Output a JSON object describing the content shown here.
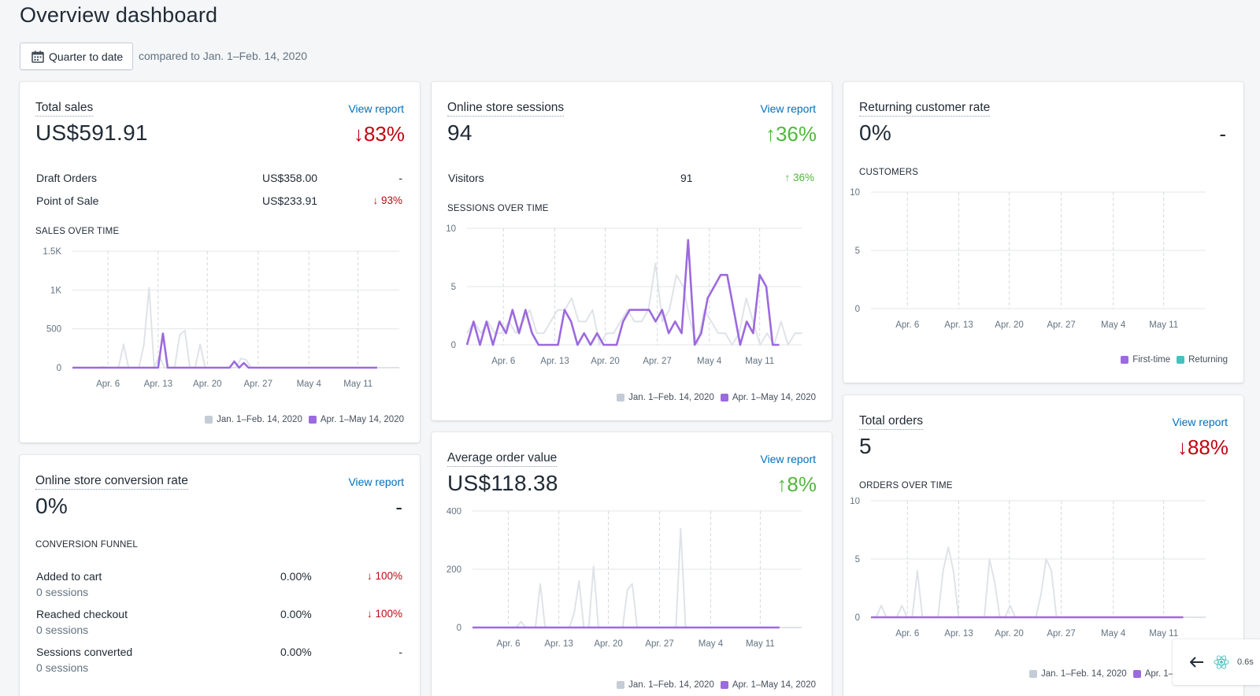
{
  "page": {
    "title": "Overview dashboard",
    "date_button": "Quarter to date",
    "compare_text": "compared to Jan. 1–Feb. 14, 2020"
  },
  "colors": {
    "current": "#9c6ade",
    "previous": "#dfe3e8",
    "returning": "#47c1bf",
    "grid": "#e6e8ea"
  },
  "x_ticks": [
    "Apr. 6",
    "Apr. 13",
    "Apr. 20",
    "Apr. 27",
    "May 4",
    "May 11"
  ],
  "legend": {
    "previous": "Jan. 1–Feb. 14, 2020",
    "current": "Apr. 1–May 14, 2020"
  },
  "total_sales": {
    "title": "Total sales",
    "view_report": "View report",
    "value": "US$591.91",
    "change": "↓83%",
    "rows": [
      {
        "label": "Draft Orders",
        "amount": "US$358.00",
        "change": "-"
      },
      {
        "label": "Point of Sale",
        "amount": "US$233.91",
        "change": "↓ 93%"
      }
    ],
    "chart_title": "SALES OVER TIME",
    "y_ticks": [
      "1.5K",
      "1K",
      "500",
      "0"
    ]
  },
  "sessions": {
    "title": "Online store sessions",
    "view_report": "View report",
    "value": "94",
    "change": "↑36%",
    "rows": [
      {
        "label": "Visitors",
        "amount": "91",
        "change": "↑ 36%"
      }
    ],
    "chart_title": "SESSIONS OVER TIME",
    "y_ticks": [
      "10",
      "5",
      "0"
    ]
  },
  "returning": {
    "title": "Returning customer rate",
    "value": "0%",
    "change": "-",
    "chart_title": "CUSTOMERS",
    "y_ticks": [
      "10",
      "5",
      "0"
    ],
    "legend_first": "First-time",
    "legend_returning": "Returning"
  },
  "conversion": {
    "title": "Online store conversion rate",
    "view_report": "View report",
    "value": "0%",
    "change": "-",
    "chart_title": "CONVERSION FUNNEL",
    "rows": [
      {
        "label": "Added to cart",
        "sub": "0 sessions",
        "amount": "0.00%",
        "change": "↓ 100%"
      },
      {
        "label": "Reached checkout",
        "sub": "0 sessions",
        "amount": "0.00%",
        "change": "↓ 100%"
      },
      {
        "label": "Sessions converted",
        "sub": "0 sessions",
        "amount": "0.00%",
        "change": "-"
      }
    ]
  },
  "aov": {
    "title": "Average order value",
    "view_report": "View report",
    "value": "US$118.38",
    "change": "↑8%",
    "y_ticks": [
      "400",
      "200",
      "0"
    ]
  },
  "orders": {
    "title": "Total orders",
    "view_report": "View report",
    "value": "5",
    "change": "↓88%",
    "chart_title": "ORDERS OVER TIME",
    "y_ticks": [
      "10",
      "5",
      "0"
    ]
  },
  "tools": {
    "time": "0.6s"
  },
  "chart_data": [
    {
      "type": "line",
      "chart": "sales",
      "title": "SALES OVER TIME",
      "ylim": [
        0,
        1500
      ],
      "x_ticks": [
        "Apr. 6",
        "Apr. 13",
        "Apr. 20",
        "Apr. 27",
        "May 4",
        "May 11"
      ],
      "series": [
        {
          "name": "Jan. 1–Feb. 14, 2020",
          "values": [
            0,
            0,
            0,
            0,
            0,
            0,
            10,
            0,
            0,
            0,
            300,
            0,
            0,
            0,
            300,
            1030,
            0,
            150,
            0,
            0,
            0,
            420,
            480,
            0,
            0,
            300,
            0,
            0,
            0,
            0,
            0,
            0,
            0,
            120,
            100,
            0,
            0,
            0,
            0,
            0,
            0,
            0,
            0,
            0,
            0,
            0,
            0,
            0,
            0,
            0,
            0,
            0,
            0,
            0,
            0,
            0,
            0,
            0,
            0,
            0,
            0,
            0,
            0,
            0,
            0
          ]
        },
        {
          "name": "Apr. 1–May 14, 2020",
          "values": [
            0,
            0,
            0,
            0,
            0,
            0,
            0,
            0,
            0,
            0,
            0,
            0,
            0,
            0,
            0,
            0,
            0,
            0,
            0,
            440,
            0,
            0,
            0,
            0,
            0,
            0,
            0,
            0,
            0,
            0,
            0,
            0,
            0,
            0,
            80,
            0,
            60,
            0,
            0,
            0,
            0,
            0,
            0,
            0,
            0,
            0,
            0,
            0,
            0,
            0,
            0,
            0,
            0,
            0,
            0,
            0,
            0,
            0,
            0,
            0,
            0,
            0,
            0,
            0,
            0
          ]
        }
      ]
    },
    {
      "type": "line",
      "chart": "sessions",
      "title": "SESSIONS OVER TIME",
      "ylim": [
        0,
        10
      ],
      "x_ticks": [
        "Apr. 6",
        "Apr. 13",
        "Apr. 20",
        "Apr. 27",
        "May 4",
        "May 11"
      ],
      "series": [
        {
          "name": "Jan. 1–Feb. 14, 2020",
          "values": [
            1,
            2,
            1,
            2,
            1,
            1,
            2,
            1,
            2,
            3,
            1,
            1,
            2,
            3,
            3,
            4,
            2,
            2,
            3,
            0,
            1,
            1,
            2,
            3,
            2,
            2,
            3,
            7,
            2,
            3,
            6,
            5,
            2,
            0,
            3,
            2,
            1,
            1,
            0,
            1,
            4,
            2,
            0,
            1,
            0,
            2,
            0,
            1,
            1
          ]
        },
        {
          "name": "Apr. 1–May 14, 2020",
          "values": [
            0,
            2,
            0,
            2,
            0,
            2,
            1,
            3,
            1,
            3,
            1,
            0,
            0,
            0,
            0,
            3,
            2,
            0,
            1,
            0,
            1,
            0,
            0,
            0,
            2,
            3,
            3,
            3,
            3,
            2,
            3,
            1,
            2,
            1,
            9,
            0,
            1,
            4,
            5,
            6,
            6,
            3,
            0,
            2,
            1,
            6,
            5,
            0,
            0
          ]
        }
      ]
    },
    {
      "type": "line",
      "chart": "customers",
      "title": "CUSTOMERS",
      "ylim": [
        0,
        10
      ],
      "x_ticks": [
        "Apr. 6",
        "Apr. 13",
        "Apr. 20",
        "Apr. 27",
        "May 4",
        "May 11"
      ],
      "series": [
        {
          "name": "First-time",
          "values": []
        },
        {
          "name": "Returning",
          "values": []
        }
      ]
    },
    {
      "type": "line",
      "chart": "aov",
      "title": "",
      "ylim": [
        0,
        400
      ],
      "x_ticks": [
        "Apr. 6",
        "Apr. 13",
        "Apr. 20",
        "Apr. 27",
        "May 4",
        "May 11"
      ],
      "series": [
        {
          "name": "Jan. 1–Feb. 14, 2020",
          "values": [
            0,
            0,
            0,
            0,
            0,
            0,
            0,
            0,
            0,
            0,
            20,
            0,
            0,
            0,
            150,
            0,
            0,
            0,
            0,
            0,
            0,
            50,
            160,
            0,
            0,
            210,
            0,
            0,
            0,
            0,
            0,
            0,
            130,
            150,
            0,
            0,
            0,
            0,
            0,
            0,
            0,
            0,
            0,
            340,
            0,
            0,
            0,
            0,
            0,
            0,
            0,
            0,
            0,
            0,
            0,
            0,
            0,
            0,
            0,
            0,
            0,
            0,
            0,
            0,
            0,
            0,
            0,
            0,
            0
          ]
        },
        {
          "name": "Apr. 1–May 14, 2020",
          "values": [
            0,
            0,
            0,
            0,
            0,
            0,
            0,
            0,
            0,
            0,
            0,
            0,
            0,
            0,
            0,
            0,
            0,
            0,
            0,
            0,
            0,
            0,
            0,
            0,
            0,
            0,
            0,
            0,
            0,
            0,
            0,
            0,
            0,
            0,
            0,
            0,
            0,
            0,
            0,
            0,
            0,
            0,
            0,
            0,
            0,
            0,
            0,
            0,
            0,
            0,
            0,
            0,
            0,
            0,
            0,
            0,
            0,
            0,
            0,
            0,
            0,
            0,
            0,
            0,
            0,
            0,
            0,
            0,
            0
          ]
        }
      ]
    },
    {
      "type": "line",
      "chart": "orders",
      "title": "ORDERS OVER TIME",
      "ylim": [
        0,
        10
      ],
      "x_ticks": [
        "Apr. 6",
        "Apr. 13",
        "Apr. 20",
        "Apr. 27",
        "May 4",
        "May 11"
      ],
      "series": [
        {
          "name": "Jan. 1–Feb. 14, 2020",
          "values": [
            0,
            0,
            1,
            0,
            0,
            0,
            1,
            0,
            0,
            4,
            0,
            0,
            0,
            0,
            4,
            6,
            4,
            0,
            0,
            0,
            0,
            0,
            0,
            5,
            3,
            0,
            0,
            1,
            0,
            0,
            0,
            0,
            0,
            2,
            5,
            4,
            0,
            0,
            0,
            0,
            0,
            0,
            0,
            0,
            0,
            0,
            0,
            0,
            0,
            0,
            0,
            0,
            0,
            0,
            0,
            0,
            0,
            0,
            0,
            0,
            0,
            0,
            0,
            0,
            0,
            0
          ]
        },
        {
          "name": "Apr. 1–May 14, 2020",
          "values": [
            0,
            0,
            0,
            0,
            0,
            0,
            0,
            0,
            0,
            0,
            0,
            0,
            0,
            0,
            0,
            0,
            0,
            0,
            0,
            0,
            0,
            0,
            0,
            0,
            0,
            0,
            0,
            0,
            0,
            0,
            0,
            0,
            0,
            0,
            0,
            0,
            0,
            0,
            0,
            0,
            0,
            0,
            0,
            0,
            0,
            0,
            0,
            0,
            0,
            0,
            0,
            0,
            0,
            0,
            0,
            0,
            0,
            0,
            0,
            0,
            0,
            0,
            0,
            0,
            0,
            0
          ]
        }
      ]
    }
  ]
}
